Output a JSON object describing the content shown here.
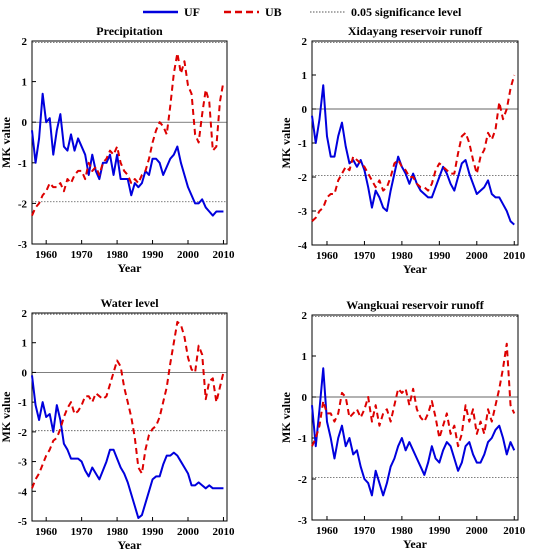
{
  "legend": {
    "uf_label": "UF",
    "ub_label": "UB",
    "sig_label": "0.05 significance level"
  },
  "colors": {
    "uf": "#0000dd",
    "ub": "#dd0000",
    "sig": "#555555"
  },
  "chart_data": [
    {
      "type": "line",
      "title": "Precipitation",
      "xlabel": "Year",
      "ylabel": "MK value",
      "xlim": [
        1956,
        2011
      ],
      "ylim": [
        -3,
        2
      ],
      "xticks": [
        1960,
        1970,
        1980,
        1990,
        2000,
        2010
      ],
      "yticks": [
        -3,
        -2,
        -1,
        0,
        1,
        2
      ],
      "significance": [
        1.96,
        -1.96
      ],
      "series": [
        {
          "name": "UF",
          "x": [
            1956,
            1957,
            1958,
            1959,
            1960,
            1961,
            1962,
            1963,
            1964,
            1965,
            1966,
            1967,
            1968,
            1969,
            1970,
            1971,
            1972,
            1973,
            1974,
            1975,
            1976,
            1977,
            1978,
            1979,
            1980,
            1981,
            1982,
            1983,
            1984,
            1985,
            1986,
            1987,
            1988,
            1989,
            1990,
            1991,
            1992,
            1993,
            1994,
            1995,
            1996,
            1997,
            1998,
            1999,
            2000,
            2001,
            2002,
            2003,
            2004,
            2005,
            2006,
            2007,
            2008,
            2009,
            2010
          ],
          "values": [
            -0.2,
            -1.0,
            -0.4,
            0.7,
            0.0,
            0.1,
            -0.8,
            -0.2,
            0.2,
            -0.6,
            -0.7,
            -0.3,
            -0.7,
            -0.4,
            -0.6,
            -0.8,
            -1.3,
            -0.8,
            -1.2,
            -1.4,
            -1.0,
            -1.0,
            -0.8,
            -1.3,
            -0.8,
            -1.4,
            -1.4,
            -1.4,
            -1.8,
            -1.5,
            -1.6,
            -1.5,
            -1.2,
            -1.3,
            -0.9,
            -0.9,
            -1.0,
            -1.3,
            -1.1,
            -0.9,
            -0.8,
            -0.6,
            -1.0,
            -1.3,
            -1.6,
            -1.8,
            -2.0,
            -2.0,
            -1.9,
            -2.1,
            -2.2,
            -2.3,
            -2.2,
            -2.2,
            -2.2
          ]
        },
        {
          "name": "UB",
          "x": [
            1956,
            1957,
            1958,
            1959,
            1960,
            1961,
            1962,
            1963,
            1964,
            1965,
            1966,
            1967,
            1968,
            1969,
            1970,
            1971,
            1972,
            1973,
            1974,
            1975,
            1976,
            1977,
            1978,
            1979,
            1980,
            1981,
            1982,
            1983,
            1984,
            1985,
            1986,
            1987,
            1988,
            1989,
            1990,
            1991,
            1992,
            1993,
            1994,
            1995,
            1996,
            1997,
            1998,
            1999,
            2000,
            2001,
            2002,
            2003,
            2004,
            2005,
            2006,
            2007,
            2008,
            2009,
            2010
          ],
          "values": [
            -2.3,
            -2.1,
            -2.0,
            -1.8,
            -1.7,
            -1.5,
            -1.6,
            -1.6,
            -1.5,
            -1.7,
            -1.4,
            -1.5,
            -1.3,
            -1.2,
            -1.2,
            -1.4,
            -1.0,
            -1.2,
            -1.1,
            -1.3,
            -1.0,
            -0.9,
            -0.7,
            -0.8,
            -0.6,
            -1.0,
            -1.2,
            -1.3,
            -1.5,
            -1.4,
            -1.5,
            -1.3,
            -1.2,
            -0.9,
            -0.5,
            -0.2,
            0.0,
            -0.1,
            -0.3,
            0.4,
            1.2,
            1.7,
            1.2,
            1.5,
            0.9,
            0.7,
            -0.3,
            -0.5,
            0.2,
            0.8,
            0.5,
            -0.7,
            -0.6,
            0.5,
            1.0
          ]
        }
      ]
    },
    {
      "type": "line",
      "title": "Xidayang reservoir runoff",
      "xlabel": "Year",
      "ylabel": "MK value",
      "xlim": [
        1956,
        2011
      ],
      "ylim": [
        -4,
        2
      ],
      "xticks": [
        1960,
        1970,
        1980,
        1990,
        2000,
        2010
      ],
      "yticks": [
        -4,
        -3,
        -2,
        -1,
        0,
        1,
        2
      ],
      "significance": [
        1.96,
        -1.96
      ],
      "series": [
        {
          "name": "UF",
          "x": [
            1956,
            1957,
            1958,
            1959,
            1960,
            1961,
            1962,
            1963,
            1964,
            1965,
            1966,
            1967,
            1968,
            1969,
            1970,
            1971,
            1972,
            1973,
            1974,
            1975,
            1976,
            1977,
            1978,
            1979,
            1980,
            1981,
            1982,
            1983,
            1984,
            1985,
            1986,
            1987,
            1988,
            1989,
            1990,
            1991,
            1992,
            1993,
            1994,
            1995,
            1996,
            1997,
            1998,
            1999,
            2000,
            2001,
            2002,
            2003,
            2004,
            2005,
            2006,
            2007,
            2008,
            2009,
            2010
          ],
          "values": [
            -0.2,
            -1.0,
            -0.3,
            0.7,
            -0.8,
            -1.4,
            -1.4,
            -0.8,
            -0.4,
            -1.1,
            -1.6,
            -1.5,
            -1.7,
            -1.5,
            -1.8,
            -2.3,
            -2.9,
            -2.4,
            -2.6,
            -2.9,
            -3.0,
            -2.4,
            -1.9,
            -1.4,
            -1.7,
            -1.9,
            -2.2,
            -1.9,
            -2.2,
            -2.4,
            -2.5,
            -2.6,
            -2.6,
            -2.3,
            -2.0,
            -1.7,
            -1.9,
            -2.2,
            -2.4,
            -2.0,
            -1.6,
            -1.5,
            -1.9,
            -2.2,
            -2.5,
            -2.4,
            -2.3,
            -2.1,
            -2.5,
            -2.6,
            -2.6,
            -2.8,
            -3.0,
            -3.3,
            -3.4
          ]
        },
        {
          "name": "UB",
          "x": [
            1956,
            1957,
            1958,
            1959,
            1960,
            1961,
            1962,
            1963,
            1964,
            1965,
            1966,
            1967,
            1968,
            1969,
            1970,
            1971,
            1972,
            1973,
            1974,
            1975,
            1976,
            1977,
            1978,
            1979,
            1980,
            1981,
            1982,
            1983,
            1984,
            1985,
            1986,
            1987,
            1988,
            1989,
            1990,
            1991,
            1992,
            1993,
            1994,
            1995,
            1996,
            1997,
            1998,
            1999,
            2000,
            2001,
            2002,
            2003,
            2004,
            2005,
            2006,
            2007,
            2008,
            2009,
            2010
          ],
          "values": [
            -3.3,
            -3.2,
            -3.0,
            -2.9,
            -2.6,
            -2.5,
            -2.5,
            -2.1,
            -1.9,
            -1.7,
            -1.8,
            -1.4,
            -1.5,
            -1.6,
            -1.7,
            -1.9,
            -2.1,
            -2.3,
            -2.1,
            -2.4,
            -2.3,
            -2.0,
            -1.6,
            -1.5,
            -1.7,
            -1.8,
            -2.0,
            -2.0,
            -2.2,
            -2.3,
            -2.3,
            -2.4,
            -2.2,
            -1.8,
            -1.6,
            -1.7,
            -1.8,
            -1.9,
            -1.9,
            -1.3,
            -0.8,
            -0.7,
            -1.0,
            -1.5,
            -1.9,
            -1.4,
            -1.2,
            -0.7,
            -0.9,
            -0.6,
            0.2,
            -0.3,
            0.0,
            0.6,
            1.0
          ]
        }
      ]
    },
    {
      "type": "line",
      "title": "Water level",
      "xlabel": "Year",
      "ylabel": "MK value",
      "xlim": [
        1956,
        2011
      ],
      "ylim": [
        -5,
        2
      ],
      "xticks": [
        1960,
        1970,
        1980,
        1990,
        2000,
        2010
      ],
      "yticks": [
        -5,
        -4,
        -3,
        -2,
        -1,
        0,
        1,
        2
      ],
      "significance": [
        1.96,
        -1.96
      ],
      "series": [
        {
          "name": "UF",
          "x": [
            1956,
            1957,
            1958,
            1959,
            1960,
            1961,
            1962,
            1963,
            1964,
            1965,
            1966,
            1967,
            1968,
            1969,
            1970,
            1971,
            1972,
            1973,
            1974,
            1975,
            1976,
            1977,
            1978,
            1979,
            1980,
            1981,
            1982,
            1983,
            1984,
            1985,
            1986,
            1987,
            1988,
            1989,
            1990,
            1991,
            1992,
            1993,
            1994,
            1995,
            1996,
            1997,
            1998,
            1999,
            2000,
            2001,
            2002,
            2003,
            2004,
            2005,
            2006,
            2007,
            2008,
            2009,
            2010
          ],
          "values": [
            -0.1,
            -1.1,
            -1.6,
            -1.0,
            -1.5,
            -1.4,
            -2.0,
            -1.1,
            -1.6,
            -2.4,
            -2.6,
            -2.9,
            -2.9,
            -2.9,
            -3.0,
            -3.3,
            -3.5,
            -3.2,
            -3.4,
            -3.6,
            -3.3,
            -3.0,
            -2.6,
            -2.6,
            -2.9,
            -3.2,
            -3.4,
            -3.7,
            -4.1,
            -4.5,
            -4.9,
            -4.8,
            -4.4,
            -4.0,
            -3.6,
            -3.5,
            -3.5,
            -3.1,
            -2.8,
            -2.8,
            -2.7,
            -2.8,
            -3.0,
            -3.2,
            -3.4,
            -3.8,
            -3.8,
            -3.7,
            -3.8,
            -3.9,
            -3.8,
            -3.9,
            -3.9,
            -3.9,
            -3.9
          ]
        },
        {
          "name": "UB",
          "x": [
            1956,
            1957,
            1958,
            1959,
            1960,
            1961,
            1962,
            1963,
            1964,
            1965,
            1966,
            1967,
            1968,
            1969,
            1970,
            1971,
            1972,
            1973,
            1974,
            1975,
            1976,
            1977,
            1978,
            1979,
            1980,
            1981,
            1982,
            1983,
            1984,
            1985,
            1986,
            1987,
            1988,
            1989,
            1990,
            1991,
            1992,
            1993,
            1994,
            1995,
            1996,
            1997,
            1998,
            1999,
            2000,
            2001,
            2002,
            2003,
            2004,
            2005,
            2006,
            2007,
            2008,
            2009,
            2010
          ],
          "values": [
            -3.9,
            -3.6,
            -3.4,
            -3.1,
            -2.8,
            -2.6,
            -2.3,
            -2.2,
            -1.9,
            -1.5,
            -1.2,
            -1.0,
            -1.4,
            -1.3,
            -1.1,
            -0.8,
            -0.8,
            -1.0,
            -0.7,
            -0.8,
            -0.9,
            -0.8,
            -0.4,
            0.0,
            0.4,
            0.2,
            -0.5,
            -1.0,
            -1.5,
            -2.2,
            -3.2,
            -3.4,
            -2.6,
            -2.1,
            -1.9,
            -1.8,
            -1.5,
            -1.0,
            -0.5,
            0.3,
            1.0,
            1.7,
            1.6,
            1.2,
            0.5,
            0.1,
            0.0,
            0.9,
            0.6,
            -0.9,
            -0.3,
            -0.2,
            -1.0,
            -0.5,
            0.0
          ]
        }
      ]
    },
    {
      "type": "line",
      "title": "Wangkuai reservoir runoff",
      "xlabel": "Year",
      "ylabel": "MK value",
      "xlim": [
        1956,
        2011
      ],
      "ylim": [
        -3,
        2
      ],
      "xticks": [
        1960,
        1970,
        1980,
        1990,
        2000,
        2010
      ],
      "yticks": [
        -3,
        -2,
        -1,
        0,
        1,
        2
      ],
      "significance": [
        1.96,
        -1.96
      ],
      "series": [
        {
          "name": "UF",
          "x": [
            1956,
            1957,
            1958,
            1959,
            1960,
            1961,
            1962,
            1963,
            1964,
            1965,
            1966,
            1967,
            1968,
            1969,
            1970,
            1971,
            1972,
            1973,
            1974,
            1975,
            1976,
            1977,
            1978,
            1979,
            1980,
            1981,
            1982,
            1983,
            1984,
            1985,
            1986,
            1987,
            1988,
            1989,
            1990,
            1991,
            1992,
            1993,
            1994,
            1995,
            1996,
            1997,
            1998,
            1999,
            2000,
            2001,
            2002,
            2003,
            2004,
            2005,
            2006,
            2007,
            2008,
            2009,
            2010
          ],
          "values": [
            -0.2,
            -1.2,
            -0.3,
            0.7,
            -0.6,
            -1.0,
            -1.5,
            -1.0,
            -0.7,
            -1.2,
            -1.0,
            -1.4,
            -1.3,
            -1.7,
            -2.0,
            -2.1,
            -2.4,
            -1.8,
            -2.1,
            -2.4,
            -2.1,
            -1.7,
            -1.5,
            -1.2,
            -1.0,
            -1.3,
            -1.1,
            -1.3,
            -1.5,
            -1.7,
            -1.9,
            -1.6,
            -1.2,
            -1.5,
            -1.6,
            -1.3,
            -1.1,
            -1.2,
            -1.5,
            -1.8,
            -1.6,
            -1.2,
            -1.1,
            -1.4,
            -1.6,
            -1.6,
            -1.4,
            -1.1,
            -1.0,
            -0.8,
            -0.7,
            -1.0,
            -1.4,
            -1.1,
            -1.3
          ]
        },
        {
          "name": "UB",
          "x": [
            1956,
            1957,
            1958,
            1959,
            1960,
            1961,
            1962,
            1963,
            1964,
            1965,
            1966,
            1967,
            1968,
            1969,
            1970,
            1971,
            1972,
            1973,
            1974,
            1975,
            1976,
            1977,
            1978,
            1979,
            1980,
            1981,
            1982,
            1983,
            1984,
            1985,
            1986,
            1987,
            1988,
            1989,
            1990,
            1991,
            1992,
            1993,
            1994,
            1995,
            1996,
            1997,
            1998,
            1999,
            2000,
            2001,
            2002,
            2003,
            2004,
            2005,
            2006,
            2007,
            2008,
            2009,
            2010
          ],
          "values": [
            -1.2,
            -1.0,
            -0.7,
            -0.1,
            -0.4,
            -0.4,
            -0.6,
            -0.4,
            0.1,
            0.0,
            -0.5,
            -0.4,
            -0.3,
            -0.5,
            -0.3,
            0.0,
            -0.6,
            -0.2,
            -0.7,
            -0.4,
            -0.3,
            -0.6,
            -0.2,
            0.2,
            0.1,
            0.2,
            -0.2,
            0.2,
            -0.3,
            -0.5,
            -0.6,
            -0.4,
            -0.1,
            -0.5,
            -1.0,
            -0.7,
            -0.4,
            -0.9,
            -0.7,
            -1.2,
            -0.9,
            -0.2,
            -0.6,
            -0.3,
            -0.9,
            -0.6,
            -0.9,
            -0.3,
            -0.6,
            -0.2,
            0.2,
            0.7,
            1.3,
            -0.2,
            -0.4
          ]
        }
      ]
    }
  ]
}
